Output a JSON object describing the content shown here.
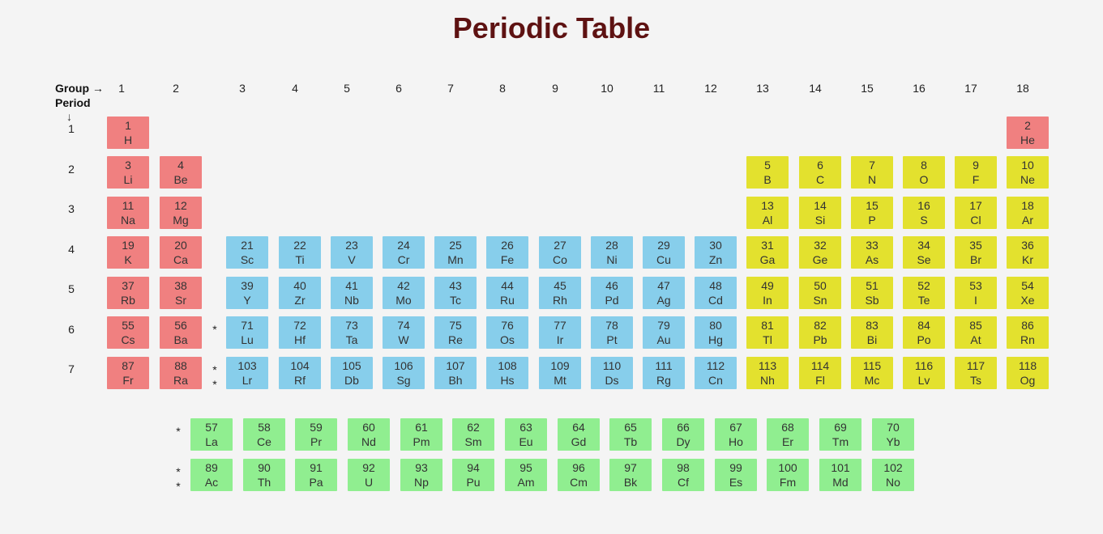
{
  "title": "Periodic Table",
  "axis": {
    "group_label": "Group →",
    "period_label": "Period",
    "period_arrow": "↓"
  },
  "groups": [
    "1",
    "2",
    "3",
    "4",
    "5",
    "6",
    "7",
    "8",
    "9",
    "10",
    "11",
    "12",
    "13",
    "14",
    "15",
    "16",
    "17",
    "18"
  ],
  "periods": [
    "1",
    "2",
    "3",
    "4",
    "5",
    "6",
    "7"
  ],
  "colors": {
    "s_block": "#f08080",
    "p_block": "#e3e12e",
    "d_block": "#87ceeb",
    "f_block": "#90ee90",
    "title": "#5e1212",
    "background": "#f4f4f4"
  },
  "star_markers": {
    "lanthanide": "*",
    "actinide": [
      "*",
      "*"
    ]
  },
  "elements": [
    {
      "num": "1",
      "sym": "H",
      "group": 1,
      "period": 1,
      "block": "s"
    },
    {
      "num": "2",
      "sym": "He",
      "group": 18,
      "period": 1,
      "block": "s"
    },
    {
      "num": "3",
      "sym": "Li",
      "group": 1,
      "period": 2,
      "block": "s"
    },
    {
      "num": "4",
      "sym": "Be",
      "group": 2,
      "period": 2,
      "block": "s"
    },
    {
      "num": "5",
      "sym": "B",
      "group": 13,
      "period": 2,
      "block": "p"
    },
    {
      "num": "6",
      "sym": "C",
      "group": 14,
      "period": 2,
      "block": "p"
    },
    {
      "num": "7",
      "sym": "N",
      "group": 15,
      "period": 2,
      "block": "p"
    },
    {
      "num": "8",
      "sym": "O",
      "group": 16,
      "period": 2,
      "block": "p"
    },
    {
      "num": "9",
      "sym": "F",
      "group": 17,
      "period": 2,
      "block": "p"
    },
    {
      "num": "10",
      "sym": "Ne",
      "group": 18,
      "period": 2,
      "block": "p"
    },
    {
      "num": "11",
      "sym": "Na",
      "group": 1,
      "period": 3,
      "block": "s"
    },
    {
      "num": "12",
      "sym": "Mg",
      "group": 2,
      "period": 3,
      "block": "s"
    },
    {
      "num": "13",
      "sym": "Al",
      "group": 13,
      "period": 3,
      "block": "p"
    },
    {
      "num": "14",
      "sym": "Si",
      "group": 14,
      "period": 3,
      "block": "p"
    },
    {
      "num": "15",
      "sym": "P",
      "group": 15,
      "period": 3,
      "block": "p"
    },
    {
      "num": "16",
      "sym": "S",
      "group": 16,
      "period": 3,
      "block": "p"
    },
    {
      "num": "17",
      "sym": "Cl",
      "group": 17,
      "period": 3,
      "block": "p"
    },
    {
      "num": "18",
      "sym": "Ar",
      "group": 18,
      "period": 3,
      "block": "p"
    },
    {
      "num": "19",
      "sym": "K",
      "group": 1,
      "period": 4,
      "block": "s"
    },
    {
      "num": "20",
      "sym": "Ca",
      "group": 2,
      "period": 4,
      "block": "s"
    },
    {
      "num": "21",
      "sym": "Sc",
      "group": 3,
      "period": 4,
      "block": "d"
    },
    {
      "num": "22",
      "sym": "Ti",
      "group": 4,
      "period": 4,
      "block": "d"
    },
    {
      "num": "23",
      "sym": "V",
      "group": 5,
      "period": 4,
      "block": "d"
    },
    {
      "num": "24",
      "sym": "Cr",
      "group": 6,
      "period": 4,
      "block": "d"
    },
    {
      "num": "25",
      "sym": "Mn",
      "group": 7,
      "period": 4,
      "block": "d"
    },
    {
      "num": "26",
      "sym": "Fe",
      "group": 8,
      "period": 4,
      "block": "d"
    },
    {
      "num": "27",
      "sym": "Co",
      "group": 9,
      "period": 4,
      "block": "d"
    },
    {
      "num": "28",
      "sym": "Ni",
      "group": 10,
      "period": 4,
      "block": "d"
    },
    {
      "num": "29",
      "sym": "Cu",
      "group": 11,
      "period": 4,
      "block": "d"
    },
    {
      "num": "30",
      "sym": "Zn",
      "group": 12,
      "period": 4,
      "block": "d"
    },
    {
      "num": "31",
      "sym": "Ga",
      "group": 13,
      "period": 4,
      "block": "p"
    },
    {
      "num": "32",
      "sym": "Ge",
      "group": 14,
      "period": 4,
      "block": "p"
    },
    {
      "num": "33",
      "sym": "As",
      "group": 15,
      "period": 4,
      "block": "p"
    },
    {
      "num": "34",
      "sym": "Se",
      "group": 16,
      "period": 4,
      "block": "p"
    },
    {
      "num": "35",
      "sym": "Br",
      "group": 17,
      "period": 4,
      "block": "p"
    },
    {
      "num": "36",
      "sym": "Kr",
      "group": 18,
      "period": 4,
      "block": "p"
    },
    {
      "num": "37",
      "sym": "Rb",
      "group": 1,
      "period": 5,
      "block": "s"
    },
    {
      "num": "38",
      "sym": "Sr",
      "group": 2,
      "period": 5,
      "block": "s"
    },
    {
      "num": "39",
      "sym": "Y",
      "group": 3,
      "period": 5,
      "block": "d"
    },
    {
      "num": "40",
      "sym": "Zr",
      "group": 4,
      "period": 5,
      "block": "d"
    },
    {
      "num": "41",
      "sym": "Nb",
      "group": 5,
      "period": 5,
      "block": "d"
    },
    {
      "num": "42",
      "sym": "Mo",
      "group": 6,
      "period": 5,
      "block": "d"
    },
    {
      "num": "43",
      "sym": "Tc",
      "group": 7,
      "period": 5,
      "block": "d"
    },
    {
      "num": "44",
      "sym": "Ru",
      "group": 8,
      "period": 5,
      "block": "d"
    },
    {
      "num": "45",
      "sym": "Rh",
      "group": 9,
      "period": 5,
      "block": "d"
    },
    {
      "num": "46",
      "sym": "Pd",
      "group": 10,
      "period": 5,
      "block": "d"
    },
    {
      "num": "47",
      "sym": "Ag",
      "group": 11,
      "period": 5,
      "block": "d"
    },
    {
      "num": "48",
      "sym": "Cd",
      "group": 12,
      "period": 5,
      "block": "d"
    },
    {
      "num": "49",
      "sym": "In",
      "group": 13,
      "period": 5,
      "block": "p"
    },
    {
      "num": "50",
      "sym": "Sn",
      "group": 14,
      "period": 5,
      "block": "p"
    },
    {
      "num": "51",
      "sym": "Sb",
      "group": 15,
      "period": 5,
      "block": "p"
    },
    {
      "num": "52",
      "sym": "Te",
      "group": 16,
      "period": 5,
      "block": "p"
    },
    {
      "num": "53",
      "sym": "I",
      "group": 17,
      "period": 5,
      "block": "p"
    },
    {
      "num": "54",
      "sym": "Xe",
      "group": 18,
      "period": 5,
      "block": "p"
    },
    {
      "num": "55",
      "sym": "Cs",
      "group": 1,
      "period": 6,
      "block": "s"
    },
    {
      "num": "56",
      "sym": "Ba",
      "group": 2,
      "period": 6,
      "block": "s"
    },
    {
      "num": "71",
      "sym": "Lu",
      "group": 3,
      "period": 6,
      "block": "d"
    },
    {
      "num": "72",
      "sym": "Hf",
      "group": 4,
      "period": 6,
      "block": "d"
    },
    {
      "num": "73",
      "sym": "Ta",
      "group": 5,
      "period": 6,
      "block": "d"
    },
    {
      "num": "74",
      "sym": "W",
      "group": 6,
      "period": 6,
      "block": "d"
    },
    {
      "num": "75",
      "sym": "Re",
      "group": 7,
      "period": 6,
      "block": "d"
    },
    {
      "num": "76",
      "sym": "Os",
      "group": 8,
      "period": 6,
      "block": "d"
    },
    {
      "num": "77",
      "sym": "Ir",
      "group": 9,
      "period": 6,
      "block": "d"
    },
    {
      "num": "78",
      "sym": "Pt",
      "group": 10,
      "period": 6,
      "block": "d"
    },
    {
      "num": "79",
      "sym": "Au",
      "group": 11,
      "period": 6,
      "block": "d"
    },
    {
      "num": "80",
      "sym": "Hg",
      "group": 12,
      "period": 6,
      "block": "d"
    },
    {
      "num": "81",
      "sym": "Tl",
      "group": 13,
      "period": 6,
      "block": "p"
    },
    {
      "num": "82",
      "sym": "Pb",
      "group": 14,
      "period": 6,
      "block": "p"
    },
    {
      "num": "83",
      "sym": "Bi",
      "group": 15,
      "period": 6,
      "block": "p"
    },
    {
      "num": "84",
      "sym": "Po",
      "group": 16,
      "period": 6,
      "block": "p"
    },
    {
      "num": "85",
      "sym": "At",
      "group": 17,
      "period": 6,
      "block": "p"
    },
    {
      "num": "86",
      "sym": "Rn",
      "group": 18,
      "period": 6,
      "block": "p"
    },
    {
      "num": "87",
      "sym": "Fr",
      "group": 1,
      "period": 7,
      "block": "s"
    },
    {
      "num": "88",
      "sym": "Ra",
      "group": 2,
      "period": 7,
      "block": "s"
    },
    {
      "num": "103",
      "sym": "Lr",
      "group": 3,
      "period": 7,
      "block": "d"
    },
    {
      "num": "104",
      "sym": "Rf",
      "group": 4,
      "period": 7,
      "block": "d"
    },
    {
      "num": "105",
      "sym": "Db",
      "group": 5,
      "period": 7,
      "block": "d"
    },
    {
      "num": "106",
      "sym": "Sg",
      "group": 6,
      "period": 7,
      "block": "d"
    },
    {
      "num": "107",
      "sym": "Bh",
      "group": 7,
      "period": 7,
      "block": "d"
    },
    {
      "num": "108",
      "sym": "Hs",
      "group": 8,
      "period": 7,
      "block": "d"
    },
    {
      "num": "109",
      "sym": "Mt",
      "group": 9,
      "period": 7,
      "block": "d"
    },
    {
      "num": "110",
      "sym": "Ds",
      "group": 10,
      "period": 7,
      "block": "d"
    },
    {
      "num": "111",
      "sym": "Rg",
      "group": 11,
      "period": 7,
      "block": "d"
    },
    {
      "num": "112",
      "sym": "Cn",
      "group": 12,
      "period": 7,
      "block": "d"
    },
    {
      "num": "113",
      "sym": "Nh",
      "group": 13,
      "period": 7,
      "block": "p"
    },
    {
      "num": "114",
      "sym": "Fl",
      "group": 14,
      "period": 7,
      "block": "p"
    },
    {
      "num": "115",
      "sym": "Mc",
      "group": 15,
      "period": 7,
      "block": "p"
    },
    {
      "num": "116",
      "sym": "Lv",
      "group": 16,
      "period": 7,
      "block": "p"
    },
    {
      "num": "117",
      "sym": "Ts",
      "group": 17,
      "period": 7,
      "block": "p"
    },
    {
      "num": "118",
      "sym": "Og",
      "group": 18,
      "period": 7,
      "block": "p"
    }
  ],
  "lanthanides": [
    {
      "num": "57",
      "sym": "La"
    },
    {
      "num": "58",
      "sym": "Ce"
    },
    {
      "num": "59",
      "sym": "Pr"
    },
    {
      "num": "60",
      "sym": "Nd"
    },
    {
      "num": "61",
      "sym": "Pm"
    },
    {
      "num": "62",
      "sym": "Sm"
    },
    {
      "num": "63",
      "sym": "Eu"
    },
    {
      "num": "64",
      "sym": "Gd"
    },
    {
      "num": "65",
      "sym": "Tb"
    },
    {
      "num": "66",
      "sym": "Dy"
    },
    {
      "num": "67",
      "sym": "Ho"
    },
    {
      "num": "68",
      "sym": "Er"
    },
    {
      "num": "69",
      "sym": "Tm"
    },
    {
      "num": "70",
      "sym": "Yb"
    }
  ],
  "actinides": [
    {
      "num": "89",
      "sym": "Ac"
    },
    {
      "num": "90",
      "sym": "Th"
    },
    {
      "num": "91",
      "sym": "Pa"
    },
    {
      "num": "92",
      "sym": "U"
    },
    {
      "num": "93",
      "sym": "Np"
    },
    {
      "num": "94",
      "sym": "Pu"
    },
    {
      "num": "95",
      "sym": "Am"
    },
    {
      "num": "96",
      "sym": "Cm"
    },
    {
      "num": "97",
      "sym": "Bk"
    },
    {
      "num": "98",
      "sym": "Cf"
    },
    {
      "num": "99",
      "sym": "Es"
    },
    {
      "num": "100",
      "sym": "Fm"
    },
    {
      "num": "101",
      "sym": "Md"
    },
    {
      "num": "102",
      "sym": "No"
    }
  ]
}
